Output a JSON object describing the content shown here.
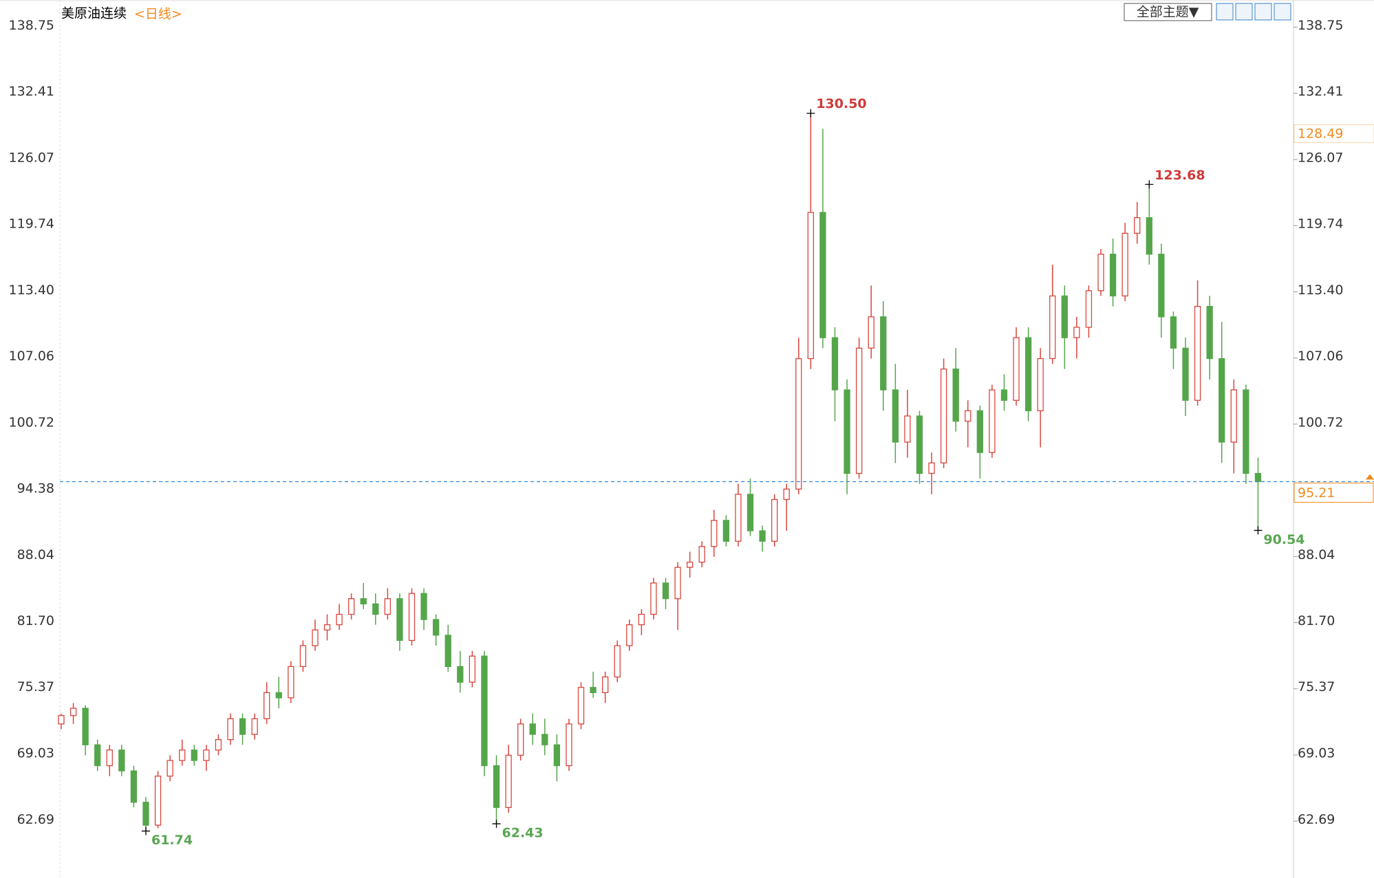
{
  "chart_data": {
    "type": "candlestick",
    "title": "美原油连续",
    "period": "<日线>",
    "theme_button": "全部主题▼",
    "ylim": [
      57.24,
      141.35
    ],
    "yticks": [
      138.75,
      132.41,
      126.07,
      119.74,
      {
        "value": 113.4,
        "label": "113.40"
      },
      107.06,
      100.72,
      94.38,
      88.04,
      {
        "value": 81.7,
        "label": "81.70"
      },
      75.37,
      69.03,
      62.69
    ],
    "up_color": "#d9453c",
    "down_color": "#55a64b",
    "last_price": 95.21,
    "marker_price": 128.49,
    "annotations": [
      {
        "label": "130.50",
        "color": "#d03a3a"
      },
      {
        "label": "123.68",
        "color": "#d03a3a"
      },
      {
        "label": "61.74",
        "color": "#5aa653"
      },
      {
        "label": "62.43",
        "color": "#5aa653"
      },
      {
        "label": "90.54",
        "color": "#5aa653"
      }
    ],
    "candles": [
      [
        72,
        73,
        71.5,
        72.8
      ],
      [
        72.8,
        74,
        72,
        73.5
      ],
      [
        73.5,
        73.8,
        69,
        70
      ],
      [
        70,
        70.5,
        67.5,
        68
      ],
      [
        68,
        70,
        67,
        69.5
      ],
      [
        69.5,
        70,
        67,
        67.5
      ],
      [
        67.5,
        68,
        64,
        64.5
      ],
      [
        64.5,
        65,
        61.74,
        62.3
      ],
      [
        62.3,
        67.5,
        62,
        67
      ],
      [
        67,
        69,
        66.5,
        68.5
      ],
      [
        68.5,
        70.5,
        68,
        69.5
      ],
      [
        69.5,
        70,
        68,
        68.5
      ],
      [
        68.5,
        70,
        67.5,
        69.5
      ],
      [
        69.5,
        71,
        69,
        70.5
      ],
      [
        70.5,
        73,
        70,
        72.5
      ],
      [
        72.5,
        73,
        70,
        71
      ],
      [
        71,
        73,
        70.5,
        72.5
      ],
      [
        72.5,
        76,
        72,
        75
      ],
      [
        75,
        76.5,
        73.5,
        74.5
      ],
      [
        74.5,
        78,
        74,
        77.5
      ],
      [
        77.5,
        80,
        77,
        79.5
      ],
      [
        79.5,
        82,
        79,
        81
      ],
      [
        81,
        82.5,
        80,
        81.5
      ],
      [
        81.5,
        83.5,
        81,
        82.5
      ],
      [
        82.5,
        84.5,
        82,
        84
      ],
      [
        84,
        85.5,
        83,
        83.5
      ],
      [
        83.5,
        84.5,
        81.5,
        82.5
      ],
      [
        82.5,
        85,
        82,
        84
      ],
      [
        84,
        84.5,
        79,
        80
      ],
      [
        80,
        85,
        79.5,
        84.5
      ],
      [
        84.5,
        85,
        81,
        82
      ],
      [
        82,
        82.5,
        79.5,
        80.5
      ],
      [
        80.5,
        81.5,
        77,
        77.5
      ],
      [
        77.5,
        79,
        75,
        76
      ],
      [
        76,
        79,
        75.5,
        78.5
      ],
      [
        78.5,
        79,
        67,
        68
      ],
      [
        68,
        69,
        62.43,
        64
      ],
      [
        64,
        70,
        63.5,
        69
      ],
      [
        69,
        72.5,
        68.5,
        72
      ],
      [
        72,
        73,
        70,
        71
      ],
      [
        71,
        72.5,
        69,
        70
      ],
      [
        70,
        71,
        66.5,
        68
      ],
      [
        68,
        72.5,
        67.5,
        72
      ],
      [
        72,
        76,
        71.5,
        75.5
      ],
      [
        75.5,
        77,
        74.5,
        75
      ],
      [
        75,
        77,
        74,
        76.5
      ],
      [
        76.5,
        80,
        76,
        79.5
      ],
      [
        79.5,
        82,
        79,
        81.5
      ],
      [
        81.5,
        83,
        80.5,
        82.5
      ],
      [
        82.5,
        86,
        82,
        85.5
      ],
      [
        85.5,
        86,
        83,
        84
      ],
      [
        84,
        87.5,
        81,
        87
      ],
      [
        87,
        88.5,
        86,
        87.5
      ],
      [
        87.5,
        89.5,
        87,
        89
      ],
      [
        89,
        92.5,
        88,
        91.5
      ],
      [
        91.5,
        92,
        89,
        89.5
      ],
      [
        89.5,
        95,
        89,
        94
      ],
      [
        94,
        95.5,
        90,
        90.5
      ],
      [
        90.5,
        91,
        88.5,
        89.5
      ],
      [
        89.5,
        94,
        89,
        93.5
      ],
      [
        93.5,
        95,
        90.5,
        94.5
      ],
      [
        94.5,
        109,
        94,
        107
      ],
      [
        107,
        130.5,
        106,
        121
      ],
      [
        121,
        129,
        108,
        109
      ],
      [
        109,
        110,
        101,
        104
      ],
      [
        104,
        105,
        94,
        96
      ],
      [
        96,
        109,
        95.5,
        108
      ],
      [
        108,
        114,
        107,
        111
      ],
      [
        111,
        112.5,
        102,
        104
      ],
      [
        104,
        106.5,
        97,
        99
      ],
      [
        99,
        104,
        97.5,
        101.5
      ],
      [
        101.5,
        102,
        95,
        96
      ],
      [
        96,
        98,
        94,
        97
      ],
      [
        97,
        107,
        96.5,
        106
      ],
      [
        106,
        108,
        100,
        101
      ],
      [
        101,
        103,
        98.5,
        102
      ],
      [
        102,
        102.5,
        95.5,
        98
      ],
      [
        98,
        104.5,
        97.5,
        104
      ],
      [
        104,
        105.5,
        102,
        103
      ],
      [
        103,
        110,
        102.5,
        109
      ],
      [
        109,
        110,
        101,
        102
      ],
      [
        102,
        108,
        98.5,
        107
      ],
      [
        107,
        116,
        106.5,
        113
      ],
      [
        113,
        114,
        106,
        109
      ],
      [
        109,
        111,
        107,
        110
      ],
      [
        110,
        114,
        109,
        113.5
      ],
      [
        113.5,
        117.5,
        113,
        117
      ],
      [
        117,
        118.5,
        112,
        113
      ],
      [
        113,
        120,
        112.5,
        119
      ],
      [
        119,
        122,
        118,
        120.5
      ],
      [
        120.5,
        123.68,
        116,
        117
      ],
      [
        117,
        118,
        109,
        111
      ],
      [
        111,
        111.5,
        106,
        108
      ],
      [
        108,
        109,
        101.5,
        103
      ],
      [
        103,
        114.5,
        102.5,
        112
      ],
      [
        112,
        113,
        105,
        107
      ],
      [
        107,
        110.5,
        97,
        99
      ],
      [
        99,
        105,
        96,
        104
      ],
      [
        104,
        104.5,
        95,
        96
      ],
      [
        96,
        97.5,
        90.54,
        95.21
      ]
    ]
  }
}
